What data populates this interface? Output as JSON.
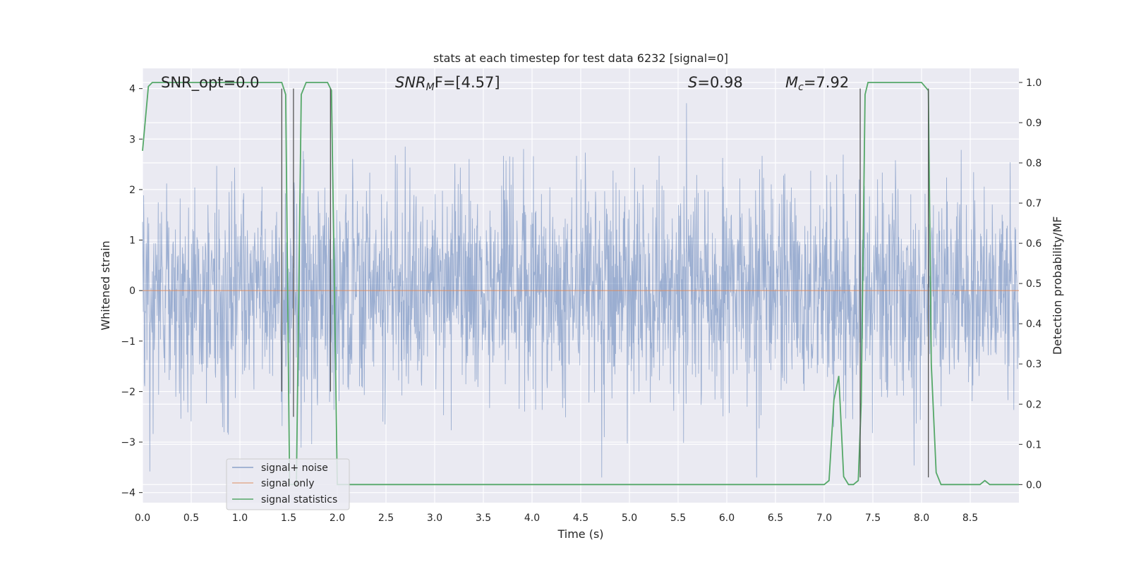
{
  "chart_data": {
    "type": "line",
    "title": "stats at each timestep for test data 6232 [signal=0]",
    "xlabel": "Time (s)",
    "ylabel": "Whitened strain",
    "ylabel_right": "Detection probability/MF",
    "xlim": [
      0.0,
      9.0
    ],
    "ylim": [
      -4.2,
      4.4
    ],
    "ylim_right": [
      -0.045,
      1.035
    ],
    "x_ticks": [
      0.0,
      0.5,
      1.0,
      1.5,
      2.0,
      2.5,
      3.0,
      3.5,
      4.0,
      4.5,
      5.0,
      5.5,
      6.0,
      6.5,
      7.0,
      7.5,
      8.0,
      8.5
    ],
    "x_tick_labels": [
      "0.0",
      "0.5",
      "1.0",
      "1.5",
      "2.0",
      "2.5",
      "3.0",
      "3.5",
      "4.0",
      "4.5",
      "5.0",
      "5.5",
      "6.0",
      "6.5",
      "7.0",
      "7.5",
      "8.0",
      "8.5"
    ],
    "y_ticks": [
      -4,
      -3,
      -2,
      -1,
      0,
      1,
      2,
      3,
      4
    ],
    "y_tick_labels": [
      "−4",
      "−3",
      "−2",
      "−1",
      "0",
      "1",
      "2",
      "3",
      "4"
    ],
    "y_right_ticks": [
      0.0,
      0.1,
      0.2,
      0.3,
      0.4,
      0.5,
      0.6,
      0.7,
      0.8,
      0.9,
      1.0
    ],
    "y_right_tick_labels": [
      "0.0",
      "0.1",
      "0.2",
      "0.3",
      "0.4",
      "0.5",
      "0.6",
      "0.7",
      "0.8",
      "0.9",
      "1.0"
    ],
    "grid": true,
    "legend_position": "lower-left",
    "annotations": {
      "snr_opt": "SNR_opt=0.0",
      "snr_mf_main": "SNR",
      "snr_mf_sub": "M",
      "snr_mf_rest": "F=[4.57]",
      "s_main": "S",
      "s_rest": "=0.98",
      "mc_main": "M",
      "mc_sub": "c",
      "mc_rest": "=7.92"
    },
    "series": [
      {
        "name": "signal+ noise",
        "color": "#4c72b0",
        "axis": "left",
        "description_style": "dense noise",
        "amplitude_envelope": [
          -3.7,
          3.8
        ]
      },
      {
        "name": "signal only",
        "color": "#dd8452",
        "axis": "left",
        "x": [
          0.0,
          9.0
        ],
        "y": [
          0.0,
          0.0
        ]
      },
      {
        "name": "signal statistics",
        "color": "#55a868",
        "axis": "right",
        "x": [
          0.0,
          0.06,
          0.1,
          0.15,
          1.35,
          1.43,
          1.47,
          1.51,
          1.55,
          1.58,
          1.63,
          1.68,
          1.85,
          1.9,
          1.94,
          1.97,
          2.0,
          2.05,
          2.1,
          2.2,
          7.0,
          7.05,
          7.1,
          7.15,
          7.2,
          7.25,
          7.3,
          7.35,
          7.38,
          7.42,
          7.45,
          7.5,
          7.6,
          8.0,
          8.07,
          8.1,
          8.15,
          8.2,
          8.6,
          8.65,
          8.7,
          8.8,
          9.0
        ],
        "y": [
          0.83,
          0.99,
          1.0,
          1.0,
          1.0,
          1.0,
          0.97,
          0.0,
          0.0,
          0.0,
          0.97,
          1.0,
          1.0,
          1.0,
          0.98,
          0.5,
          0.0,
          0.0,
          0.0,
          0.0,
          0.0,
          0.01,
          0.21,
          0.27,
          0.02,
          0.0,
          0.0,
          0.01,
          0.2,
          0.97,
          1.0,
          1.0,
          1.0,
          1.0,
          0.98,
          0.3,
          0.03,
          0.0,
          0.0,
          0.01,
          0.0,
          0.0,
          0.0
        ]
      }
    ],
    "vertical_markers": [
      {
        "x": 1.43,
        "y_range": [
          -2.0,
          4.0
        ]
      },
      {
        "x": 1.55,
        "y_range": [
          -2.5,
          4.0
        ]
      },
      {
        "x": 1.93,
        "y_range": [
          -2.0,
          4.0
        ]
      },
      {
        "x": 7.37,
        "y_range": [
          -3.7,
          4.0
        ]
      },
      {
        "x": 8.07,
        "y_range": [
          -3.7,
          4.0
        ]
      }
    ]
  }
}
